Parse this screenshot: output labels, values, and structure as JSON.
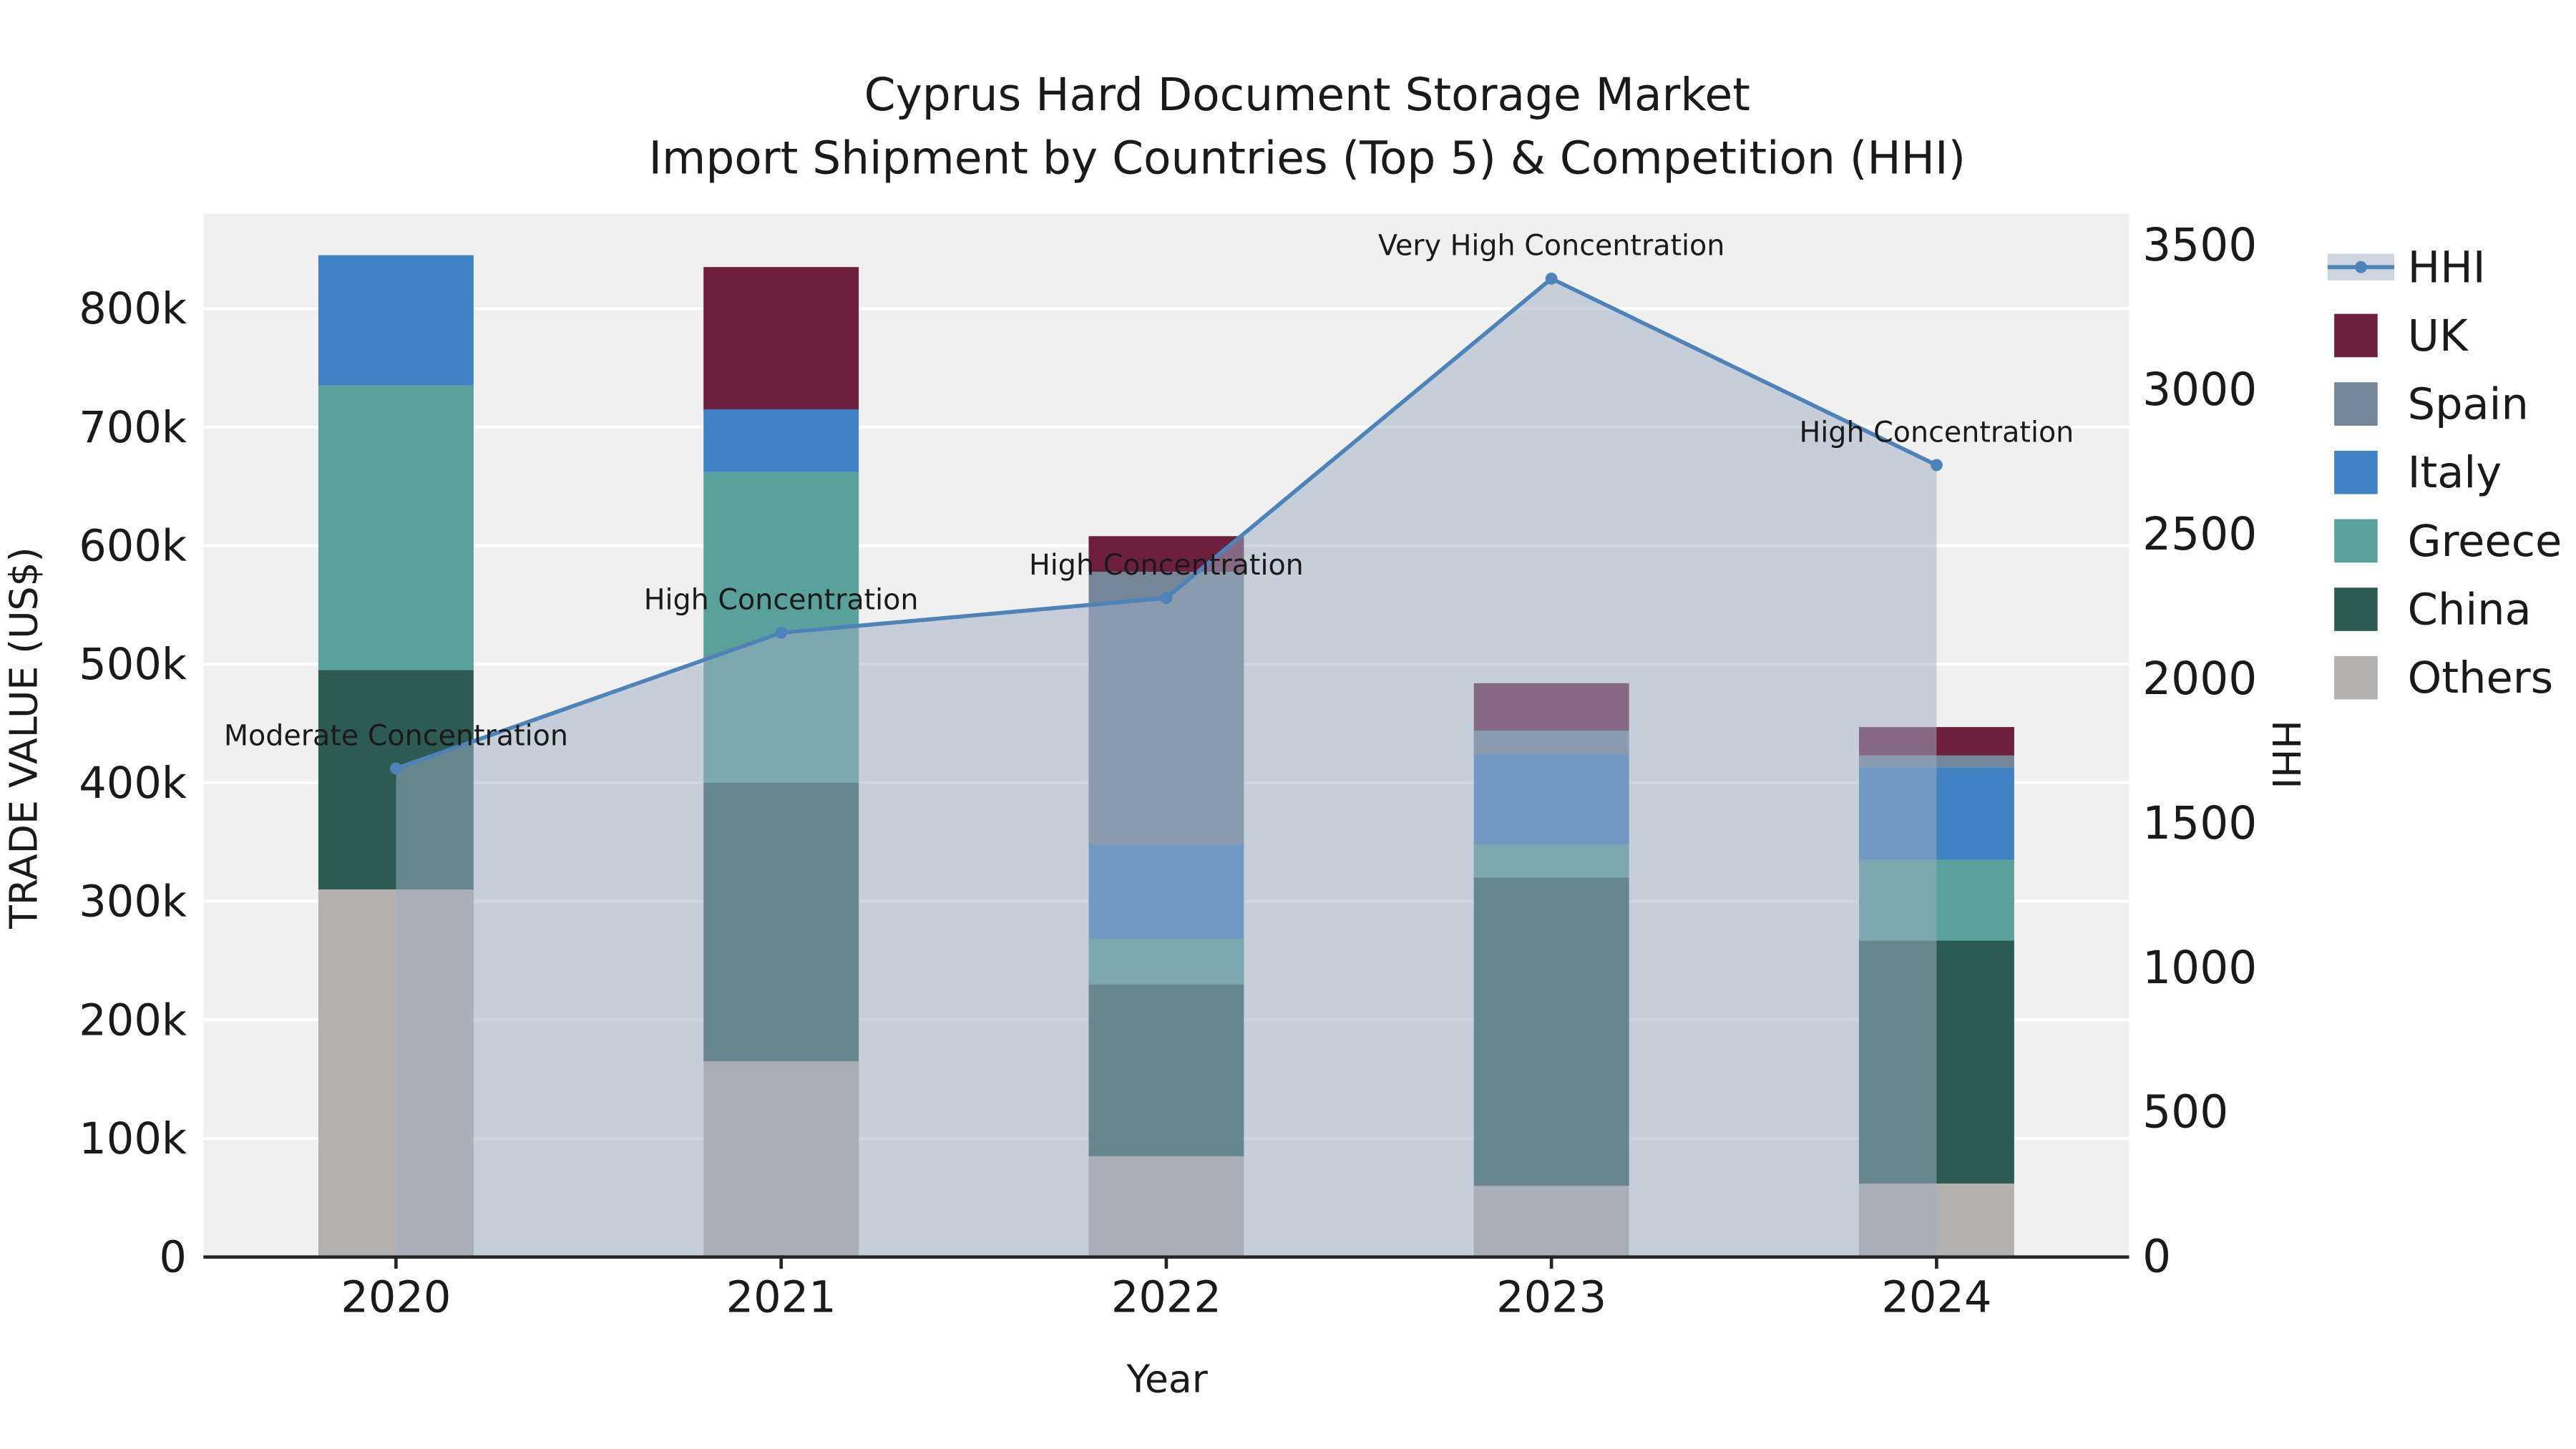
{
  "title": {
    "line1": "Cyprus Hard Document Storage Market",
    "line2": "Import Shipment by Countries (Top 5) & Competition (HHI)"
  },
  "chart_data": {
    "type": "combo-stacked-bar-line-area",
    "categories": [
      "2020",
      "2021",
      "2022",
      "2023",
      "2024"
    ],
    "xlabel": "Year",
    "ylabel_left": "TRADE VALUE (US$)",
    "ylabel_right": "HHI",
    "ylim_left": [
      0,
      880000
    ],
    "ylim_right": [
      0,
      3500
    ],
    "grid": true,
    "legend_position": "right",
    "colors": {
      "plot_bg": "#f0f0f0",
      "gridline": "#ffffff",
      "axis": "#262626"
    },
    "yticks_left": [
      {
        "label": "0",
        "value": 0
      },
      {
        "label": "100k",
        "value": 100000
      },
      {
        "label": "200k",
        "value": 200000
      },
      {
        "label": "300k",
        "value": 300000
      },
      {
        "label": "400k",
        "value": 400000
      },
      {
        "label": "500k",
        "value": 500000
      },
      {
        "label": "600k",
        "value": 600000
      },
      {
        "label": "700k",
        "value": 700000
      },
      {
        "label": "800k",
        "value": 800000
      }
    ],
    "yticks_right": [
      {
        "label": "0",
        "value": 0
      },
      {
        "label": "500",
        "value": 500
      },
      {
        "label": "1000",
        "value": 1000
      },
      {
        "label": "1500",
        "value": 1500
      },
      {
        "label": "2000",
        "value": 2000
      },
      {
        "label": "2500",
        "value": 2500
      },
      {
        "label": "3000",
        "value": 3000
      },
      {
        "label": "3500",
        "value": 3500
      }
    ],
    "series": [
      {
        "name": "Others",
        "color": "#b3b0ad",
        "values": [
          310000,
          165000,
          85000,
          60000,
          62000
        ]
      },
      {
        "name": "China",
        "color": "#2e5a54",
        "values": [
          185000,
          235000,
          145000,
          260000,
          205000
        ]
      },
      {
        "name": "Greece",
        "color": "#5aa19b",
        "values": [
          240000,
          262000,
          38000,
          28000,
          68000
        ]
      },
      {
        "name": "Italy",
        "color": "#4182c4",
        "values": [
          110000,
          53000,
          80000,
          76000,
          78000
        ]
      },
      {
        "name": "Spain",
        "color": "#75859a",
        "values": [
          0,
          0,
          230000,
          20000,
          10000
        ]
      },
      {
        "name": "UK",
        "color": "#6d1f3e",
        "values": [
          0,
          120000,
          30000,
          40000,
          24000
        ]
      }
    ],
    "hhi": {
      "name": "HHI",
      "color": "#4d83b8",
      "area_color": "rgba(158,174,196,0.52)",
      "values": [
        1690,
        2160,
        2280,
        3385,
        2740
      ]
    },
    "annotations": [
      {
        "x": 0,
        "text": "Moderate Concentration"
      },
      {
        "x": 1,
        "text": "High Concentration"
      },
      {
        "x": 2,
        "text": "High Concentration"
      },
      {
        "x": 3,
        "text": "Very High Concentration"
      },
      {
        "x": 4,
        "text": "High Concentration"
      }
    ],
    "legend": [
      "HHI",
      "UK",
      "Spain",
      "Italy",
      "Greece",
      "China",
      "Others"
    ]
  }
}
